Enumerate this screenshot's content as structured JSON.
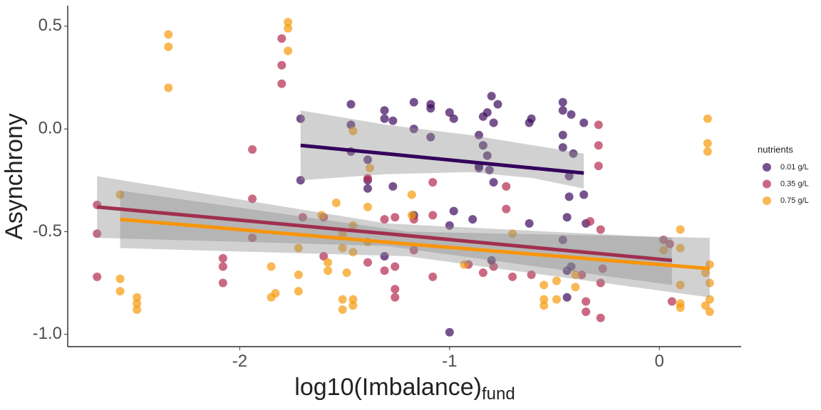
{
  "chart_data": {
    "type": "scatter",
    "x_label": "log10(Imbalance)",
    "x_label_subscript": "fund",
    "y_label": "Asynchrony",
    "legend_title": "nutrients",
    "legend_position": "right",
    "xlim": [
      -2.82,
      0.39
    ],
    "xticks": [
      -2,
      -1,
      0
    ],
    "ylim": [
      -1.06,
      0.6
    ],
    "yticks": [
      0.5,
      {
        "value": 0,
        "label": "0.0"
      },
      -0.5,
      {
        "value": -1,
        "label": "-1.0"
      }
    ],
    "band_color": "#8c8c8c",
    "series": [
      {
        "name": "0.01 g/L",
        "color": "#3d0a5e",
        "line_color": "#34005c",
        "x": [
          -1.71,
          -1.71,
          -1.47,
          -1.47,
          -1.47,
          -1.39,
          -1.39,
          -1.39,
          -1.31,
          -1.31,
          -1.27,
          -1.27,
          -1.17,
          -1.17,
          -1.17,
          -1.09,
          -1.09,
          -1.09,
          -1.0,
          -1.0,
          -0.98,
          -0.98,
          -0.86,
          -0.86,
          -0.86,
          -0.84,
          -0.84,
          -0.82,
          -0.82,
          -0.8,
          -0.77,
          -0.79,
          -0.79,
          -0.81,
          -0.8,
          -0.89,
          -0.62,
          -0.62,
          -0.61,
          -0.46,
          -0.46,
          -0.46,
          -0.46,
          -0.44,
          -0.43,
          -0.43,
          -0.42,
          -0.41,
          -0.36,
          -0.36,
          -0.35,
          -0.44,
          -0.44,
          -1.0,
          -1.31,
          -0.42,
          -0.46
        ],
        "y": [
          0.05,
          -0.25,
          0.12,
          0.02,
          -0.11,
          -0.15,
          -0.25,
          -0.29,
          0.09,
          0.05,
          0.04,
          -0.28,
          0.13,
          0.0,
          -0.42,
          0.12,
          0.1,
          -0.04,
          0.08,
          -0.47,
          -0.4,
          0.05,
          -0.03,
          -0.18,
          -0.19,
          0.06,
          -0.08,
          0.08,
          -0.13,
          0.16,
          0.12,
          0.03,
          -0.26,
          -0.2,
          -0.64,
          -0.44,
          0.03,
          -0.46,
          0.05,
          0.13,
          0.09,
          -0.03,
          -0.09,
          -0.43,
          -0.23,
          -0.33,
          0.07,
          -0.12,
          0.03,
          -0.32,
          -0.46,
          -0.82,
          -0.69,
          -0.99,
          -0.62,
          -0.67,
          -0.54
        ],
        "fit": {
          "x": [
            -1.71,
            -1.3,
            -0.9,
            -0.6,
            -0.36
          ],
          "y": [
            -0.08,
            -0.121,
            -0.161,
            -0.191,
            -0.215
          ],
          "upper": [
            0.09,
            0.02,
            -0.03,
            -0.08,
            -0.12
          ],
          "lower": [
            -0.25,
            -0.22,
            -0.21,
            -0.24,
            -0.29
          ]
        }
      },
      {
        "name": "0.35 g/L",
        "color": "#b5294f",
        "line_color": "#a0304f",
        "x": [
          -2.68,
          -2.68,
          -2.68,
          -2.08,
          -2.08,
          -2.08,
          -1.94,
          -1.94,
          -1.94,
          -1.8,
          -1.8,
          -1.8,
          -1.7,
          -1.6,
          -1.6,
          -1.39,
          -1.39,
          -1.31,
          -1.31,
          -1.26,
          -1.26,
          -1.26,
          -1.26,
          -1.17,
          -1.17,
          -1.08,
          -1.08,
          -1.08,
          -0.91,
          -0.84,
          -0.79,
          -0.73,
          -0.73,
          -0.7,
          -0.29,
          -0.29,
          -0.29,
          -0.28,
          -0.27,
          -0.28,
          -0.37,
          -0.35,
          -0.35,
          -0.28,
          -0.33,
          0.02,
          0.05,
          0.06,
          -0.61
        ],
        "y": [
          -0.37,
          -0.51,
          -0.72,
          -0.63,
          -0.67,
          -0.75,
          -0.1,
          -0.34,
          -0.53,
          0.44,
          0.31,
          0.22,
          -0.43,
          -0.43,
          -0.62,
          -0.24,
          -0.65,
          -0.44,
          -0.69,
          -0.43,
          -0.78,
          -0.82,
          -0.67,
          -0.59,
          -0.44,
          -0.42,
          -0.72,
          -0.26,
          -0.66,
          -0.7,
          -0.67,
          -0.28,
          -0.39,
          -0.72,
          0.02,
          -0.08,
          -0.18,
          -0.49,
          -0.68,
          -0.75,
          -0.71,
          -0.84,
          -0.89,
          -0.92,
          -0.45,
          -0.54,
          -0.56,
          -0.84,
          -0.71
        ],
        "fit": {
          "x": [
            -2.68,
            -1.3,
            0.06
          ],
          "y": [
            -0.38,
            -0.51,
            -0.64
          ],
          "upper": [
            -0.23,
            -0.46,
            -0.53
          ],
          "lower": [
            -0.53,
            -0.57,
            -0.76
          ]
        }
      },
      {
        "name": "0.75 g/L",
        "color": "#f79a0c",
        "line_color": "#f7950a",
        "x": [
          -2.57,
          -2.57,
          -2.57,
          -2.49,
          -2.49,
          -2.49,
          -2.34,
          -2.34,
          -2.34,
          -1.85,
          -1.85,
          -1.83,
          -1.77,
          -1.77,
          -1.77,
          -1.72,
          -1.72,
          -1.72,
          -1.61,
          -1.58,
          -1.58,
          -1.54,
          -1.51,
          -1.51,
          -1.51,
          -1.51,
          -1.49,
          -1.46,
          -1.46,
          -1.46,
          -1.46,
          -1.46,
          -1.39,
          -1.39,
          -1.38,
          -1.18,
          -1.18,
          -0.93,
          -0.7,
          -0.55,
          -0.55,
          -0.55,
          -0.49,
          -0.49,
          -0.4,
          -0.4,
          0.1,
          0.1,
          0.1,
          0.1,
          0.1,
          0.22,
          0.22,
          0.23,
          0.23,
          0.23,
          0.24,
          0.24,
          0.24,
          0.24,
          0.02
        ],
        "y": [
          -0.32,
          -0.73,
          -0.79,
          -0.82,
          -0.85,
          -0.88,
          0.46,
          0.4,
          0.2,
          -0.67,
          -0.82,
          -0.8,
          0.52,
          0.49,
          0.38,
          -0.58,
          -0.71,
          -0.79,
          -0.42,
          -0.65,
          -0.69,
          -0.36,
          -0.51,
          -0.58,
          -0.83,
          -0.88,
          -0.7,
          -0.47,
          -0.6,
          -0.83,
          -0.86,
          -0.01,
          -0.38,
          -0.55,
          -0.19,
          -0.32,
          -0.42,
          -0.66,
          -0.51,
          -0.76,
          -0.83,
          -0.86,
          -0.74,
          -0.83,
          -0.71,
          -0.77,
          -0.49,
          -0.58,
          -0.76,
          -0.85,
          -0.87,
          -0.7,
          -0.86,
          0.05,
          -0.07,
          -0.11,
          -0.66,
          -0.75,
          -0.83,
          -0.89,
          -0.59
        ],
        "fit": {
          "x": [
            -2.57,
            -1.2,
            0.24
          ],
          "y": [
            -0.44,
            -0.56,
            -0.68
          ],
          "upper": [
            -0.3,
            -0.5,
            -0.53
          ],
          "lower": [
            -0.58,
            -0.62,
            -0.82
          ]
        }
      }
    ]
  }
}
